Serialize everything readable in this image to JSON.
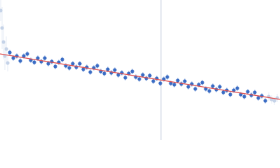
{
  "chart_data": {
    "type": "scatter",
    "xlim": [
      0,
      400
    ],
    "ylim": [
      0,
      200
    ],
    "series": [
      {
        "color": "#c5d3e8",
        "x": [
          1,
          3,
          5,
          7,
          9,
          11,
          384,
          388,
          392,
          396
        ],
        "values": [
          185,
          160,
          140,
          120,
          130,
          110,
          62,
          58,
          56,
          60
        ],
        "errors": [
          15,
          30,
          25,
          20,
          18,
          12,
          6,
          6,
          6,
          6
        ]
      },
      {
        "color": "#3a6cc4",
        "x": [
          14,
          19,
          24,
          29,
          34,
          39,
          44,
          49,
          54,
          59,
          64,
          69,
          74,
          79,
          84,
          89,
          94,
          99,
          104,
          109,
          114,
          119,
          124,
          129,
          134,
          139,
          144,
          149,
          154,
          159,
          164,
          169,
          174,
          179,
          184,
          189,
          194,
          199,
          204,
          209,
          214,
          219,
          224,
          229,
          234,
          239,
          244,
          249,
          254,
          259,
          264,
          269,
          274,
          279,
          284,
          289,
          294,
          299,
          304,
          309,
          314,
          319,
          324,
          329,
          334,
          339,
          344,
          349,
          354,
          359,
          364,
          369,
          374,
          379
        ],
        "values": [
          125,
          117,
          120,
          113,
          120,
          123,
          114,
          111,
          117,
          112,
          117,
          109,
          112,
          105,
          111,
          115,
          106,
          103,
          109,
          104,
          109,
          101,
          104,
          97,
          103,
          106,
          98,
          95,
          101,
          96,
          100,
          93,
          96,
          89,
          95,
          98,
          90,
          87,
          93,
          88,
          92,
          84,
          88,
          81,
          87,
          90,
          81,
          79,
          85,
          80,
          84,
          76,
          80,
          73,
          79,
          82,
          73,
          70,
          77,
          72,
          76,
          68,
          71,
          65,
          71,
          74,
          65,
          62,
          69,
          64,
          68,
          60,
          63,
          56
        ],
        "errors": [
          4,
          4,
          4,
          4,
          4,
          4,
          4,
          4,
          4,
          4,
          4,
          4,
          4,
          4,
          4,
          4,
          4,
          4,
          4,
          4,
          4,
          4,
          4,
          4,
          4,
          4,
          4,
          4,
          4,
          4,
          4,
          4,
          4,
          4,
          4,
          4,
          4,
          4,
          4,
          4,
          4,
          4,
          4,
          4,
          4,
          4,
          4,
          4,
          4,
          4,
          4,
          4,
          4,
          4,
          4,
          4,
          4,
          4,
          4,
          4,
          4,
          4,
          4,
          4,
          4,
          4,
          4,
          4,
          4,
          4,
          4,
          4,
          4,
          4
        ]
      }
    ],
    "fit": {
      "color": "#e05050",
      "x": [
        0,
        400
      ],
      "values": [
        123,
        58
      ]
    },
    "vline": {
      "x": 230,
      "color": "#c8d0e0"
    }
  }
}
